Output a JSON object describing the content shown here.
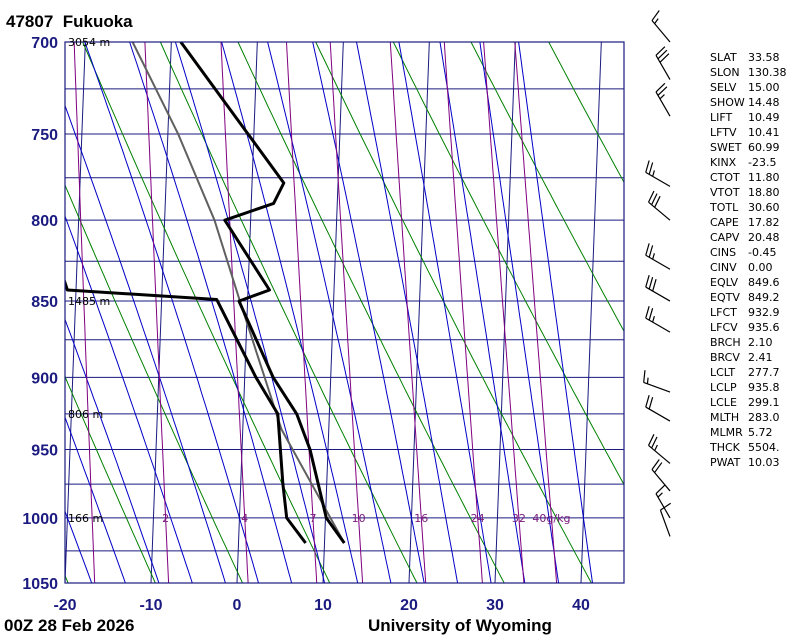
{
  "station": {
    "id": "47807",
    "name": "Fukuoka"
  },
  "footer": {
    "time": "00Z 28 Feb 2026",
    "source": "University of Wyoming"
  },
  "indices": [
    {
      "key": "SLAT",
      "value": "33.58"
    },
    {
      "key": "SLON",
      "value": "130.38"
    },
    {
      "key": "SELV",
      "value": "15.00"
    },
    {
      "key": "SHOW",
      "value": "14.48"
    },
    {
      "key": "LIFT",
      "value": "10.49"
    },
    {
      "key": "LFTV",
      "value": "10.41"
    },
    {
      "key": "SWET",
      "value": "60.99"
    },
    {
      "key": "KINX",
      "value": "-23.5"
    },
    {
      "key": "CTOT",
      "value": "11.80"
    },
    {
      "key": "VTOT",
      "value": "18.80"
    },
    {
      "key": "TOTL",
      "value": "30.60"
    },
    {
      "key": "CAPE",
      "value": "17.82"
    },
    {
      "key": "CAPV",
      "value": "20.48"
    },
    {
      "key": "CINS",
      "value": "-0.45"
    },
    {
      "key": "CINV",
      "value": "0.00"
    },
    {
      "key": "EQLV",
      "value": "849.6"
    },
    {
      "key": "EQTV",
      "value": "849.2"
    },
    {
      "key": "LFCT",
      "value": "932.9"
    },
    {
      "key": "LFCV",
      "value": "935.6"
    },
    {
      "key": "BRCH",
      "value": "2.10"
    },
    {
      "key": "BRCV",
      "value": "2.41"
    },
    {
      "key": "LCLT",
      "value": "277.7"
    },
    {
      "key": "LCLP",
      "value": "935.8"
    },
    {
      "key": "LCLE",
      "value": "299.1"
    },
    {
      "key": "MLTH",
      "value": "283.0"
    },
    {
      "key": "MLMR",
      "value": "5.72"
    },
    {
      "key": "THCK",
      "value": "5504."
    },
    {
      "key": "PWAT",
      "value": "10.03"
    }
  ],
  "colors": {
    "frame": "#1a1a80",
    "isobar": "#1a1a80",
    "isotherm": "#1a1a80",
    "dry_adiabat": "#008000",
    "moist_adiabat": "#0000c8",
    "mixing_ratio": "#800080",
    "temperature": "#000000",
    "parcel": "#606060"
  },
  "chart_data": {
    "type": "skew-t",
    "xlabel": "",
    "ylabel": "",
    "xlim": [
      -20,
      45
    ],
    "pressure_range": [
      1050,
      700
    ],
    "pressure_ticks": [
      "700",
      "750",
      "800",
      "850",
      "900",
      "950",
      "1000",
      "1050"
    ],
    "temperature_ticks": [
      "-20",
      "-10",
      "0",
      "10",
      "20",
      "30",
      "40"
    ],
    "height_labels": [
      {
        "pressure": 700,
        "text": "3054 m"
      },
      {
        "pressure": 850,
        "text": "1485 m"
      },
      {
        "pressure": 925,
        "text": "806 m"
      },
      {
        "pressure": 1000,
        "text": "166 m"
      }
    ],
    "mixing_ratio_labels": [
      "2",
      "4",
      "7",
      "10",
      "16",
      "24",
      "32",
      "40g/kg"
    ],
    "temperature_profile": [
      {
        "p": 1019,
        "t": 12.3
      },
      {
        "p": 1000,
        "t": 10.1
      },
      {
        "p": 950,
        "t": 7.9
      },
      {
        "p": 925,
        "t": 6.2
      },
      {
        "p": 900,
        "t": 3.3
      },
      {
        "p": 850,
        "t": -1.0
      },
      {
        "p": 843,
        "t": 2.5
      },
      {
        "p": 800,
        "t": -3.0
      },
      {
        "p": 790,
        "t": 2.6
      },
      {
        "p": 778,
        "t": 3.7
      },
      {
        "p": 700,
        "t": -8.9
      }
    ],
    "dewpoint_profile": [
      {
        "p": 1019,
        "t": 7.8
      },
      {
        "p": 1000,
        "t": 5.5
      },
      {
        "p": 975,
        "t": 4.9
      },
      {
        "p": 925,
        "t": 4.0
      },
      {
        "p": 900,
        "t": 1.3
      },
      {
        "p": 850,
        "t": -3.5
      },
      {
        "p": 849,
        "t": -3.6
      },
      {
        "p": 843,
        "t": -21.0
      },
      {
        "p": 800,
        "t": -24.0
      },
      {
        "p": 794,
        "t": -28.0
      }
    ],
    "parcel_profile": [
      {
        "p": 1019,
        "t": 12.3
      },
      {
        "p": 935.8,
        "t": 4.5
      },
      {
        "p": 850,
        "t": -0.9
      },
      {
        "p": 800,
        "t": -4.2
      },
      {
        "p": 750,
        "t": -8.8
      },
      {
        "p": 700,
        "t": -14.5
      }
    ],
    "wind_barbs": [
      {
        "p": 1014,
        "dir": 340,
        "spd": 10
      },
      {
        "p": 1000,
        "dir": 330,
        "spd": 15
      },
      {
        "p": 980,
        "dir": 320,
        "spd": 20
      },
      {
        "p": 960,
        "dir": 310,
        "spd": 25
      },
      {
        "p": 930,
        "dir": 300,
        "spd": 20
      },
      {
        "p": 910,
        "dir": 290,
        "spd": 15
      },
      {
        "p": 870,
        "dir": 300,
        "spd": 25
      },
      {
        "p": 850,
        "dir": 300,
        "spd": 30
      },
      {
        "p": 830,
        "dir": 300,
        "spd": 25
      },
      {
        "p": 800,
        "dir": 310,
        "spd": 30
      },
      {
        "p": 780,
        "dir": 300,
        "spd": 25
      },
      {
        "p": 740,
        "dir": 330,
        "spd": 25
      },
      {
        "p": 720,
        "dir": 330,
        "spd": 30
      },
      {
        "p": 700,
        "dir": 320,
        "spd": 15
      }
    ]
  }
}
